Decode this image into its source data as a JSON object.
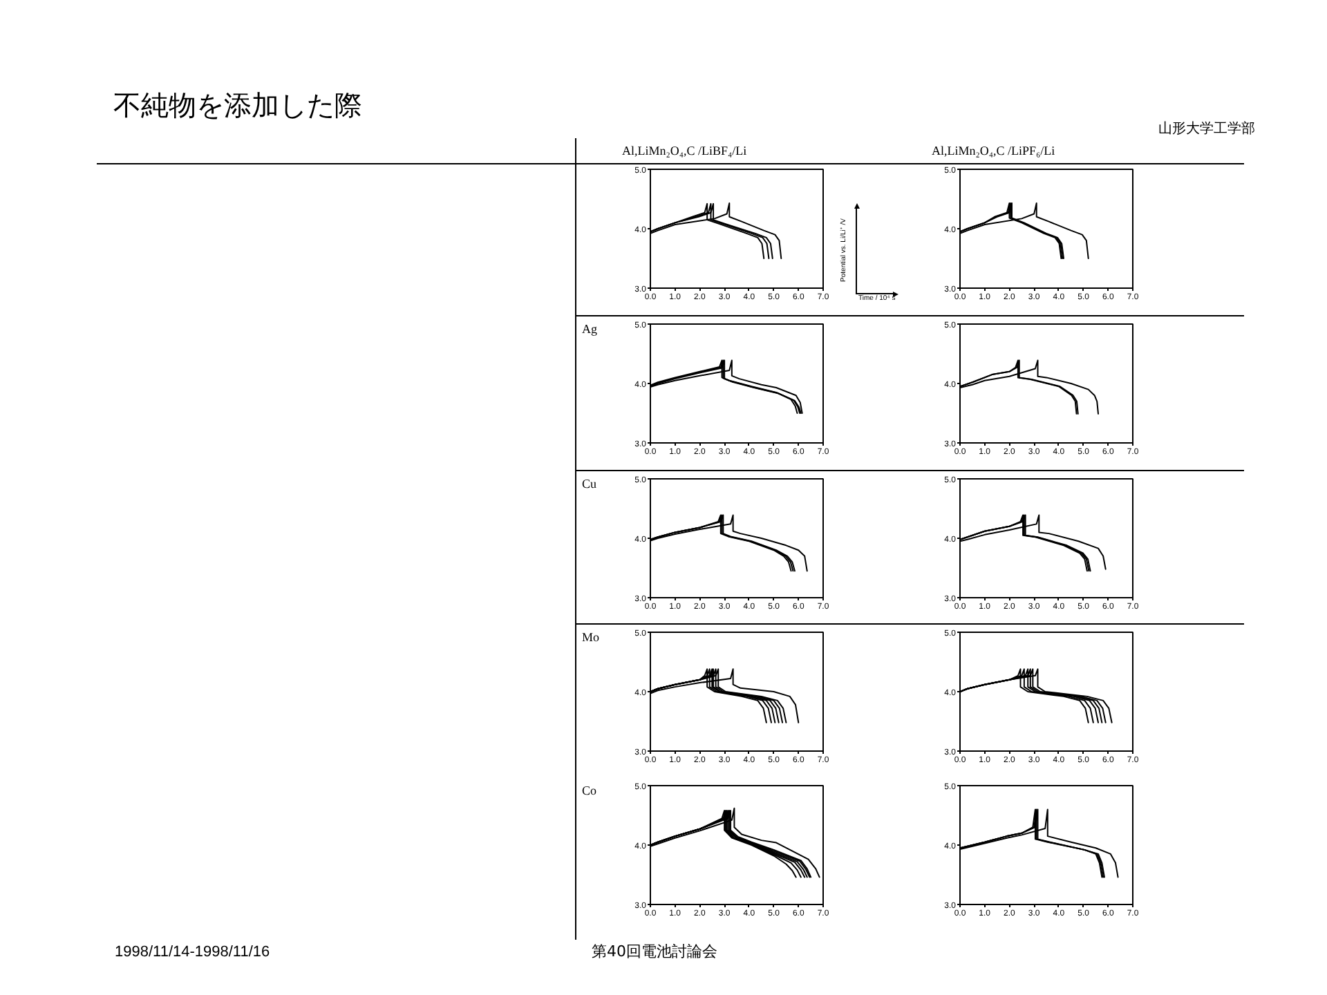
{
  "chart_data": [
    {
      "type": "line",
      "subtitle": "Al,LiMn₂O₄,C /LiBF₄/Li",
      "xlabel": "Time / 10⁴ s",
      "ylabel": "Potential vs. Li/Li⁺ /V",
      "annotations": [
        "不純物を添加した際",
        "1998/11/14-1998/11/16",
        "第40回電池討論会",
        "山形大学工学部"
      ],
      "xlim": [
        0,
        7
      ],
      "ylim": [
        3,
        5
      ],
      "xticks": [
        {
          "value": 0,
          "label": "0.0"
        },
        {
          "value": 1,
          "label": "1.0"
        },
        {
          "value": 2,
          "label": "2.0"
        },
        {
          "value": 3,
          "label": "3.0"
        },
        {
          "value": 4,
          "label": "4.0"
        },
        {
          "value": 5,
          "label": "5.0"
        },
        {
          "value": 6,
          "label": "6.0"
        },
        {
          "value": 7,
          "label": "7.0"
        }
      ],
      "yticks": [
        {
          "value": 3,
          "label": "3.0"
        },
        {
          "value": 4,
          "label": "4.0"
        },
        {
          "value": 5,
          "label": "5.0"
        }
      ],
      "series": [
        {
          "color": "#000000",
          "x": [
            0,
            0,
            0.3,
            1.0,
            1.7,
            2.2,
            2.3,
            2.3,
            2.8,
            3.9,
            4.35,
            4.52,
            4.6
          ],
          "values": [
            3.45,
            3.95,
            4.0,
            4.1,
            4.2,
            4.27,
            4.42,
            4.15,
            4.08,
            3.92,
            3.85,
            3.75,
            3.5
          ]
        },
        {
          "color": "#000000",
          "x": [
            0,
            0,
            0.3,
            1.0,
            1.85,
            2.35,
            2.45,
            2.45,
            2.95,
            4.1,
            4.55,
            4.72,
            4.8
          ],
          "values": [
            3.45,
            3.95,
            4.0,
            4.1,
            4.2,
            4.27,
            4.42,
            4.15,
            4.08,
            3.92,
            3.85,
            3.75,
            3.5
          ]
        },
        {
          "color": "#000000",
          "x": [
            0,
            0,
            0.3,
            1.0,
            1.95,
            2.45,
            2.55,
            2.55,
            3.05,
            4.25,
            4.7,
            4.87,
            4.95
          ],
          "values": [
            3.45,
            3.95,
            4.0,
            4.1,
            4.2,
            4.27,
            4.42,
            4.15,
            4.08,
            3.92,
            3.85,
            3.75,
            3.5
          ]
        },
        {
          "color": "#000000",
          "x": [
            0,
            0,
            0.3,
            1.0,
            2.6,
            3.1,
            3.2,
            3.2,
            3.7,
            4.6,
            5.05,
            5.22,
            5.3
          ],
          "values": [
            3.45,
            3.92,
            3.97,
            4.07,
            4.17,
            4.25,
            4.43,
            4.2,
            4.12,
            3.97,
            3.9,
            3.8,
            3.5
          ]
        }
      ]
    },
    {
      "type": "line",
      "subtitle": "Al,LiMn₂O₄,C /LiPF₆/Li",
      "xlim": [
        0,
        7
      ],
      "ylim": [
        3,
        5
      ],
      "xticks": [
        {
          "value": 0,
          "label": "0.0"
        },
        {
          "value": 1,
          "label": "1.0"
        },
        {
          "value": 2,
          "label": "2.0"
        },
        {
          "value": 3,
          "label": "3.0"
        },
        {
          "value": 4,
          "label": "4.0"
        },
        {
          "value": 5,
          "label": "5.0"
        },
        {
          "value": 6,
          "label": "6.0"
        },
        {
          "value": 7,
          "label": "7.0"
        }
      ],
      "yticks": [
        {
          "value": 3,
          "label": "3.0"
        },
        {
          "value": 4,
          "label": "4.0"
        },
        {
          "value": 5,
          "label": "5.0"
        }
      ],
      "series": [
        {
          "color": "#000000",
          "x": [
            0,
            0,
            0.3,
            1.0,
            1.4,
            1.9,
            2.0,
            2.0,
            2.5,
            3.4,
            3.85,
            4.02,
            4.1
          ],
          "values": [
            3.85,
            3.95,
            4.0,
            4.1,
            4.2,
            4.27,
            4.43,
            4.18,
            4.1,
            3.92,
            3.85,
            3.75,
            3.5
          ]
        },
        {
          "color": "#000000",
          "x": [
            0,
            0,
            0.3,
            1.0,
            1.45,
            1.95,
            2.05,
            2.05,
            2.55,
            3.45,
            3.9,
            4.07,
            4.15
          ],
          "values": [
            3.85,
            3.95,
            4.0,
            4.1,
            4.2,
            4.27,
            4.43,
            4.18,
            4.1,
            3.92,
            3.85,
            3.75,
            3.5
          ]
        },
        {
          "color": "#000000",
          "x": [
            0,
            0,
            0.3,
            1.0,
            1.5,
            2.0,
            2.1,
            2.1,
            2.6,
            3.5,
            3.95,
            4.12,
            4.2
          ],
          "values": [
            3.85,
            3.95,
            4.0,
            4.1,
            4.2,
            4.27,
            4.43,
            4.18,
            4.1,
            3.92,
            3.85,
            3.75,
            3.5
          ]
        },
        {
          "color": "#000000",
          "x": [
            0,
            0,
            0.3,
            1.0,
            2.5,
            3.0,
            3.1,
            3.1,
            3.6,
            4.5,
            4.95,
            5.12,
            5.2
          ],
          "values": [
            3.85,
            3.92,
            3.97,
            4.07,
            4.17,
            4.25,
            4.43,
            4.2,
            4.12,
            3.97,
            3.9,
            3.8,
            3.5
          ]
        }
      ]
    },
    {
      "type": "line",
      "title": "Ag",
      "xlim": [
        0,
        7
      ],
      "ylim": [
        3,
        5
      ],
      "xticks": [
        {
          "value": 0,
          "label": "0.0"
        },
        {
          "value": 1,
          "label": "1.0"
        },
        {
          "value": 2,
          "label": "2.0"
        },
        {
          "value": 3,
          "label": "3.0"
        },
        {
          "value": 4,
          "label": "4.0"
        },
        {
          "value": 5,
          "label": "5.0"
        },
        {
          "value": 6,
          "label": "6.0"
        },
        {
          "value": 7,
          "label": "7.0"
        }
      ],
      "yticks": [
        {
          "value": 3,
          "label": "3.0"
        },
        {
          "value": 4,
          "label": "4.0"
        },
        {
          "value": 5,
          "label": "5.0"
        }
      ],
      "series": [
        {
          "color": "#000000",
          "x": [
            0,
            0,
            0.3,
            1.0,
            2.0,
            2.8,
            2.9,
            2.9,
            3.2,
            4.1,
            5.1,
            5.7,
            5.87,
            5.95
          ],
          "values": [
            3.65,
            3.97,
            4.02,
            4.1,
            4.2,
            4.28,
            4.39,
            4.1,
            4.05,
            3.95,
            3.85,
            3.73,
            3.62,
            3.5
          ]
        },
        {
          "color": "#000000",
          "x": [
            0,
            0,
            0.3,
            1.0,
            2.0,
            2.85,
            2.95,
            2.95,
            3.25,
            4.15,
            5.15,
            5.8,
            5.97,
            6.05
          ],
          "values": [
            3.65,
            3.96,
            4.01,
            4.09,
            4.19,
            4.27,
            4.39,
            4.09,
            4.04,
            3.94,
            3.84,
            3.72,
            3.61,
            3.5
          ]
        },
        {
          "color": "#000000",
          "x": [
            0,
            0,
            0.3,
            1.0,
            2.0,
            2.9,
            3.0,
            3.0,
            3.3,
            4.2,
            5.2,
            5.85,
            6.02,
            6.1
          ],
          "values": [
            3.65,
            3.95,
            4.0,
            4.08,
            4.18,
            4.26,
            4.39,
            4.08,
            4.03,
            3.93,
            3.83,
            3.71,
            3.6,
            3.5
          ]
        },
        {
          "color": "#000000",
          "x": [
            0,
            0,
            0.3,
            1.0,
            2.0,
            3.2,
            3.3,
            3.3,
            3.6,
            4.5,
            5.1,
            5.9,
            6.07,
            6.15
          ],
          "values": [
            3.65,
            3.94,
            3.98,
            4.05,
            4.13,
            4.22,
            4.39,
            4.13,
            4.08,
            3.98,
            3.93,
            3.8,
            3.68,
            3.5
          ]
        }
      ]
    },
    {
      "type": "line",
      "xlim": [
        0,
        7
      ],
      "ylim": [
        3,
        5
      ],
      "xticks": [
        {
          "value": 0,
          "label": "0.0"
        },
        {
          "value": 1,
          "label": "1.0"
        },
        {
          "value": 2,
          "label": "2.0"
        },
        {
          "value": 3,
          "label": "3.0"
        },
        {
          "value": 4,
          "label": "4.0"
        },
        {
          "value": 5,
          "label": "5.0"
        },
        {
          "value": 6,
          "label": "6.0"
        },
        {
          "value": 7,
          "label": "7.0"
        }
      ],
      "yticks": [
        {
          "value": 3,
          "label": "3.0"
        },
        {
          "value": 4,
          "label": "4.0"
        },
        {
          "value": 5,
          "label": "5.0"
        }
      ],
      "series": [
        {
          "color": "#000000",
          "x": [
            0,
            0,
            0.5,
            1.3,
            2.0,
            2.25,
            2.35,
            2.35,
            2.85,
            4.0,
            4.52,
            4.67,
            4.72
          ],
          "values": [
            3.85,
            3.95,
            4.02,
            4.15,
            4.2,
            4.27,
            4.39,
            4.1,
            4.07,
            3.95,
            3.8,
            3.7,
            3.49
          ]
        },
        {
          "color": "#000000",
          "x": [
            0,
            0,
            0.5,
            1.3,
            2.0,
            2.3,
            2.4,
            2.4,
            2.9,
            4.05,
            4.58,
            4.73,
            4.78
          ],
          "values": [
            3.85,
            3.95,
            4.02,
            4.15,
            4.2,
            4.27,
            4.39,
            4.1,
            4.07,
            3.95,
            3.8,
            3.7,
            3.49
          ]
        },
        {
          "color": "#000000",
          "x": [
            0,
            0,
            0.5,
            1.0,
            2.0,
            3.05,
            3.15,
            3.15,
            3.5,
            4.5,
            5.2,
            5.45,
            5.55,
            5.6
          ],
          "values": [
            3.85,
            3.93,
            3.98,
            4.05,
            4.12,
            4.25,
            4.39,
            4.12,
            4.1,
            4.0,
            3.9,
            3.8,
            3.7,
            3.49
          ]
        }
      ]
    },
    {
      "type": "line",
      "title": "Cu",
      "xlim": [
        0,
        7
      ],
      "ylim": [
        3,
        5
      ],
      "xticks": [
        {
          "value": 0,
          "label": "0.0"
        },
        {
          "value": 1,
          "label": "1.0"
        },
        {
          "value": 2,
          "label": "2.0"
        },
        {
          "value": 3,
          "label": "3.0"
        },
        {
          "value": 4,
          "label": "4.0"
        },
        {
          "value": 5,
          "label": "5.0"
        },
        {
          "value": 6,
          "label": "6.0"
        },
        {
          "value": 7,
          "label": "7.0"
        }
      ],
      "yticks": [
        {
          "value": 3,
          "label": "3.0"
        },
        {
          "value": 4,
          "label": "4.0"
        },
        {
          "value": 5,
          "label": "5.0"
        }
      ],
      "series": [
        {
          "color": "#000000",
          "x": [
            0,
            0,
            0.3,
            1.0,
            2.0,
            2.75,
            2.85,
            2.85,
            3.15,
            4.0,
            5.0,
            5.4,
            5.6,
            5.7
          ],
          "values": [
            3.45,
            3.98,
            4.02,
            4.1,
            4.18,
            4.28,
            4.39,
            4.08,
            4.03,
            3.95,
            3.8,
            3.7,
            3.6,
            3.45
          ]
        },
        {
          "color": "#000000",
          "x": [
            0,
            0,
            0.3,
            1.0,
            2.0,
            2.8,
            2.9,
            2.9,
            3.2,
            4.05,
            5.05,
            5.48,
            5.68,
            5.78
          ],
          "values": [
            3.45,
            3.98,
            4.02,
            4.1,
            4.18,
            4.28,
            4.39,
            4.08,
            4.03,
            3.95,
            3.8,
            3.7,
            3.6,
            3.45
          ]
        },
        {
          "color": "#000000",
          "x": [
            0,
            0,
            0.3,
            1.0,
            2.0,
            2.85,
            2.95,
            2.95,
            3.25,
            4.1,
            5.1,
            5.55,
            5.75,
            5.85
          ],
          "values": [
            3.45,
            3.98,
            4.02,
            4.1,
            4.18,
            4.28,
            4.39,
            4.08,
            4.03,
            3.95,
            3.8,
            3.7,
            3.6,
            3.45
          ]
        },
        {
          "color": "#000000",
          "x": [
            0,
            0,
            0.3,
            1.0,
            2.0,
            3.25,
            3.35,
            3.35,
            3.65,
            4.5,
            5.5,
            6.0,
            6.25,
            6.35
          ],
          "values": [
            3.45,
            3.96,
            4.0,
            4.07,
            4.15,
            4.24,
            4.39,
            4.12,
            4.08,
            4.0,
            3.88,
            3.8,
            3.7,
            3.45
          ]
        }
      ]
    },
    {
      "type": "line",
      "xlim": [
        0,
        7
      ],
      "ylim": [
        3,
        5
      ],
      "xticks": [
        {
          "value": 0,
          "label": "0.0"
        },
        {
          "value": 1,
          "label": "1.0"
        },
        {
          "value": 2,
          "label": "2.0"
        },
        {
          "value": 3,
          "label": "3.0"
        },
        {
          "value": 4,
          "label": "4.0"
        },
        {
          "value": 5,
          "label": "5.0"
        },
        {
          "value": 6,
          "label": "6.0"
        },
        {
          "value": 7,
          "label": "7.0"
        }
      ],
      "yticks": [
        {
          "value": 3,
          "label": "3.0"
        },
        {
          "value": 4,
          "label": "4.0"
        },
        {
          "value": 5,
          "label": "5.0"
        }
      ],
      "series": [
        {
          "color": "#000000",
          "x": [
            0,
            0,
            0.3,
            1.0,
            2.0,
            2.45,
            2.55,
            2.55,
            3.05,
            4.2,
            4.85,
            5.05,
            5.15
          ],
          "values": [
            3.8,
            3.98,
            4.02,
            4.12,
            4.2,
            4.28,
            4.39,
            4.05,
            4.02,
            3.88,
            3.75,
            3.65,
            3.45
          ]
        },
        {
          "color": "#000000",
          "x": [
            0,
            0,
            0.3,
            1.0,
            2.0,
            2.5,
            2.6,
            2.6,
            3.1,
            4.27,
            4.92,
            5.12,
            5.22
          ],
          "values": [
            3.8,
            3.98,
            4.02,
            4.12,
            4.2,
            4.28,
            4.39,
            4.05,
            4.02,
            3.88,
            3.75,
            3.65,
            3.45
          ]
        },
        {
          "color": "#000000",
          "x": [
            0,
            0,
            0.3,
            1.0,
            2.0,
            2.55,
            2.65,
            2.65,
            3.15,
            4.33,
            4.98,
            5.18,
            5.28
          ],
          "values": [
            3.8,
            3.98,
            4.02,
            4.12,
            4.2,
            4.28,
            4.39,
            4.05,
            4.02,
            3.88,
            3.75,
            3.65,
            3.45
          ]
        },
        {
          "color": "#000000",
          "x": [
            0,
            0,
            0.3,
            1.0,
            2.0,
            3.1,
            3.2,
            3.2,
            3.6,
            4.8,
            5.6,
            5.8,
            5.9
          ],
          "values": [
            3.8,
            3.95,
            3.98,
            4.06,
            4.14,
            4.24,
            4.39,
            4.1,
            4.08,
            3.95,
            3.83,
            3.7,
            3.48
          ]
        }
      ]
    },
    {
      "type": "line",
      "title": "Mo",
      "xlim": [
        0,
        7
      ],
      "ylim": [
        3,
        5
      ],
      "xticks": [
        {
          "value": 0,
          "label": "0.0"
        },
        {
          "value": 1,
          "label": "1.0"
        },
        {
          "value": 2,
          "label": "2.0"
        },
        {
          "value": 3,
          "label": "3.0"
        },
        {
          "value": 4,
          "label": "4.0"
        },
        {
          "value": 5,
          "label": "5.0"
        },
        {
          "value": 6,
          "label": "6.0"
        },
        {
          "value": 7,
          "label": "7.0"
        }
      ],
      "yticks": [
        {
          "value": 3,
          "label": "3.0"
        },
        {
          "value": 4,
          "label": "4.0"
        },
        {
          "value": 5,
          "label": "5.0"
        }
      ],
      "series": [
        {
          "color": "#000000",
          "x": [
            0,
            0,
            0.3,
            1.0,
            2.0,
            2.2,
            2.3,
            2.3,
            2.6,
            3.7,
            4.35,
            4.58,
            4.7
          ],
          "values": [
            3.36,
            4.0,
            4.05,
            4.12,
            4.2,
            4.27,
            4.38,
            4.08,
            4.0,
            3.92,
            3.85,
            3.72,
            3.48
          ]
        },
        {
          "color": "#000000",
          "x": [
            0,
            0,
            0.3,
            1.0,
            2.0,
            2.3,
            2.4,
            2.4,
            2.7,
            3.9,
            4.55,
            4.78,
            4.9
          ],
          "values": [
            3.36,
            4.0,
            4.05,
            4.12,
            4.2,
            4.27,
            4.38,
            4.08,
            4.0,
            3.92,
            3.85,
            3.72,
            3.48
          ]
        },
        {
          "color": "#000000",
          "x": [
            0,
            0,
            0.3,
            1.0,
            2.0,
            2.4,
            2.5,
            2.5,
            2.8,
            4.05,
            4.7,
            4.93,
            5.05
          ],
          "values": [
            3.36,
            4.0,
            4.05,
            4.12,
            4.2,
            4.27,
            4.38,
            4.08,
            4.0,
            3.92,
            3.85,
            3.72,
            3.48
          ]
        },
        {
          "color": "#000000",
          "x": [
            0,
            0,
            0.3,
            1.0,
            2.0,
            2.45,
            2.55,
            2.55,
            2.85,
            4.2,
            4.85,
            5.08,
            5.2
          ],
          "values": [
            3.36,
            4.0,
            4.05,
            4.12,
            4.2,
            4.27,
            4.38,
            4.08,
            4.0,
            3.92,
            3.85,
            3.72,
            3.48
          ]
        },
        {
          "color": "#000000",
          "x": [
            0,
            0,
            0.3,
            1.0,
            2.0,
            2.55,
            2.65,
            2.65,
            2.95,
            4.35,
            5.0,
            5.23,
            5.35
          ],
          "values": [
            3.36,
            4.0,
            4.05,
            4.12,
            4.2,
            4.27,
            4.38,
            4.08,
            4.0,
            3.92,
            3.85,
            3.72,
            3.48
          ]
        },
        {
          "color": "#000000",
          "x": [
            0,
            0,
            0.3,
            1.0,
            2.0,
            2.65,
            2.75,
            2.75,
            3.05,
            4.5,
            5.15,
            5.38,
            5.5
          ],
          "values": [
            3.36,
            4.0,
            4.05,
            4.12,
            4.2,
            4.27,
            4.38,
            4.08,
            4.0,
            3.92,
            3.85,
            3.72,
            3.48
          ]
        },
        {
          "color": "#000000",
          "x": [
            0,
            0,
            0.3,
            1.0,
            2.0,
            3.25,
            3.35,
            3.35,
            3.65,
            5.0,
            5.65,
            5.88,
            6.0
          ],
          "values": [
            3.36,
            3.97,
            4.02,
            4.08,
            4.15,
            4.22,
            4.38,
            4.12,
            4.06,
            4.0,
            3.92,
            3.78,
            3.48
          ]
        }
      ]
    },
    {
      "type": "line",
      "xlim": [
        0,
        7
      ],
      "ylim": [
        3,
        5
      ],
      "xticks": [
        {
          "value": 0,
          "label": "0.0"
        },
        {
          "value": 1,
          "label": "1.0"
        },
        {
          "value": 2,
          "label": "2.0"
        },
        {
          "value": 3,
          "label": "3.0"
        },
        {
          "value": 4,
          "label": "4.0"
        },
        {
          "value": 5,
          "label": "5.0"
        },
        {
          "value": 6,
          "label": "6.0"
        },
        {
          "value": 7,
          "label": "7.0"
        }
      ],
      "yticks": [
        {
          "value": 3,
          "label": "3.0"
        },
        {
          "value": 4,
          "label": "4.0"
        },
        {
          "value": 5,
          "label": "5.0"
        }
      ],
      "series": [
        {
          "color": "#000000",
          "x": [
            0,
            0,
            0.3,
            1.0,
            2.0,
            2.35,
            2.45,
            2.45,
            2.75,
            4.2,
            4.85,
            5.08,
            5.2
          ],
          "values": [
            3.85,
            4.0,
            4.05,
            4.12,
            4.2,
            4.27,
            4.38,
            4.08,
            4.0,
            3.92,
            3.85,
            3.72,
            3.48
          ]
        },
        {
          "color": "#000000",
          "x": [
            0,
            0,
            0.3,
            1.0,
            2.0,
            2.5,
            2.6,
            2.6,
            2.9,
            4.4,
            5.05,
            5.28,
            5.4
          ],
          "values": [
            3.85,
            4.0,
            4.05,
            4.12,
            4.2,
            4.27,
            4.38,
            4.08,
            4.0,
            3.92,
            3.85,
            3.72,
            3.48
          ]
        },
        {
          "color": "#000000",
          "x": [
            0,
            0,
            0.3,
            1.0,
            2.0,
            2.65,
            2.75,
            2.75,
            3.05,
            4.6,
            5.25,
            5.48,
            5.6
          ],
          "values": [
            3.85,
            4.0,
            4.05,
            4.12,
            4.2,
            4.27,
            4.38,
            4.08,
            4.0,
            3.92,
            3.85,
            3.72,
            3.48
          ]
        },
        {
          "color": "#000000",
          "x": [
            0,
            0,
            0.3,
            1.0,
            2.0,
            2.75,
            2.85,
            2.85,
            3.15,
            4.75,
            5.4,
            5.63,
            5.75
          ],
          "values": [
            3.85,
            4.0,
            4.05,
            4.12,
            4.2,
            4.27,
            4.38,
            4.08,
            4.0,
            3.92,
            3.85,
            3.72,
            3.48
          ]
        },
        {
          "color": "#000000",
          "x": [
            0,
            0,
            0.3,
            1.0,
            2.0,
            2.85,
            2.95,
            2.95,
            3.25,
            4.9,
            5.55,
            5.78,
            5.9
          ],
          "values": [
            3.85,
            4.0,
            4.05,
            4.12,
            4.2,
            4.27,
            4.38,
            4.08,
            4.0,
            3.92,
            3.85,
            3.72,
            3.48
          ]
        },
        {
          "color": "#000000",
          "x": [
            0,
            0,
            0.3,
            1.0,
            2.0,
            3.05,
            3.15,
            3.15,
            3.45,
            5.15,
            5.8,
            6.03,
            6.15
          ],
          "values": [
            3.85,
            4.0,
            4.05,
            4.12,
            4.2,
            4.27,
            4.38,
            4.08,
            4.0,
            3.92,
            3.85,
            3.72,
            3.48
          ]
        }
      ]
    },
    {
      "type": "line",
      "title": "Co",
      "xlim": [
        0,
        7
      ],
      "ylim": [
        3,
        5
      ],
      "xticks": [
        {
          "value": 0,
          "label": "0.0"
        },
        {
          "value": 1,
          "label": "1.0"
        },
        {
          "value": 2,
          "label": "2.0"
        },
        {
          "value": 3,
          "label": "3.0"
        },
        {
          "value": 4,
          "label": "4.0"
        },
        {
          "value": 5,
          "label": "5.0"
        },
        {
          "value": 6,
          "label": "6.0"
        },
        {
          "value": 7,
          "label": "7.0"
        }
      ],
      "yticks": [
        {
          "value": 3,
          "label": "3.0"
        },
        {
          "value": 4,
          "label": "4.0"
        },
        {
          "value": 5,
          "label": "5.0"
        }
      ],
      "series": [
        {
          "color": "#000000",
          "x": [
            0,
            0,
            0.3,
            1.0,
            2.0,
            2.9,
            3.0,
            3.0,
            3.3,
            4.1,
            5.0,
            5.5,
            5.75,
            5.9
          ],
          "values": [
            3.35,
            4.0,
            4.05,
            4.15,
            4.27,
            4.45,
            4.58,
            4.25,
            4.12,
            4.0,
            3.82,
            3.68,
            3.57,
            3.46
          ]
        },
        {
          "color": "#000000",
          "x": [
            0,
            0,
            0.3,
            1.0,
            2.0,
            2.95,
            3.05,
            3.05,
            3.35,
            4.1,
            5.0,
            5.7,
            5.95,
            6.1
          ],
          "values": [
            3.35,
            4.0,
            4.05,
            4.15,
            4.27,
            4.45,
            4.58,
            4.25,
            4.12,
            4.01,
            3.84,
            3.7,
            3.58,
            3.46
          ]
        },
        {
          "color": "#000000",
          "x": [
            0,
            0,
            0.3,
            1.0,
            2.0,
            3.0,
            3.1,
            3.1,
            3.4,
            4.1,
            5.0,
            5.85,
            6.1,
            6.25
          ],
          "values": [
            3.35,
            4.0,
            4.05,
            4.15,
            4.27,
            4.45,
            4.58,
            4.25,
            4.12,
            4.02,
            3.86,
            3.71,
            3.58,
            3.46
          ]
        },
        {
          "color": "#000000",
          "x": [
            0,
            0,
            0.3,
            1.0,
            2.0,
            3.05,
            3.15,
            3.15,
            3.45,
            4.1,
            5.0,
            5.95,
            6.2,
            6.35
          ],
          "values": [
            3.35,
            4.0,
            4.05,
            4.15,
            4.27,
            4.45,
            4.58,
            4.25,
            4.13,
            4.03,
            3.88,
            3.72,
            3.59,
            3.46
          ]
        },
        {
          "color": "#000000",
          "x": [
            0,
            0,
            0.3,
            1.0,
            2.0,
            3.1,
            3.2,
            3.2,
            3.5,
            4.1,
            5.0,
            6.05,
            6.3,
            6.45
          ],
          "values": [
            3.35,
            4.0,
            4.05,
            4.15,
            4.27,
            4.45,
            4.58,
            4.25,
            4.13,
            4.04,
            3.9,
            3.73,
            3.59,
            3.46
          ]
        },
        {
          "color": "#000000",
          "x": [
            0,
            0,
            0.3,
            1.0,
            2.0,
            3.15,
            3.25,
            3.25,
            3.55,
            4.1,
            5.0,
            6.1,
            6.35,
            6.5
          ],
          "values": [
            3.35,
            4.0,
            4.05,
            4.15,
            4.27,
            4.45,
            4.58,
            4.25,
            4.14,
            4.05,
            3.92,
            3.74,
            3.6,
            3.46
          ]
        },
        {
          "color": "#000000",
          "x": [
            0,
            0,
            0.3,
            1.0,
            2.0,
            3.3,
            3.4,
            3.4,
            3.7,
            4.5,
            5.1,
            6.4,
            6.7,
            6.85
          ],
          "values": [
            3.35,
            3.98,
            4.02,
            4.12,
            4.24,
            4.42,
            4.62,
            4.3,
            4.18,
            4.08,
            4.04,
            3.76,
            3.6,
            3.46
          ]
        }
      ]
    },
    {
      "type": "line",
      "xlim": [
        0,
        7
      ],
      "ylim": [
        3,
        5
      ],
      "xticks": [
        {
          "value": 0,
          "label": "0.0"
        },
        {
          "value": 1,
          "label": "1.0"
        },
        {
          "value": 2,
          "label": "2.0"
        },
        {
          "value": 3,
          "label": "3.0"
        },
        {
          "value": 4,
          "label": "4.0"
        },
        {
          "value": 5,
          "label": "5.0"
        },
        {
          "value": 6,
          "label": "6.0"
        },
        {
          "value": 7,
          "label": "7.0"
        }
      ],
      "yticks": [
        {
          "value": 3,
          "label": "3.0"
        },
        {
          "value": 4,
          "label": "4.0"
        },
        {
          "value": 5,
          "label": "5.0"
        }
      ],
      "series": [
        {
          "color": "#000000",
          "x": [
            0,
            0,
            0.3,
            1.0,
            1.9,
            2.5,
            2.95,
            3.05,
            3.05,
            3.55,
            5.04,
            5.5,
            5.65,
            5.75
          ],
          "values": [
            3.85,
            3.95,
            3.98,
            4.05,
            4.15,
            4.2,
            4.3,
            4.6,
            4.1,
            4.05,
            3.92,
            3.85,
            3.7,
            3.46
          ]
        },
        {
          "color": "#000000",
          "x": [
            0,
            0,
            0.3,
            1.0,
            1.9,
            2.5,
            3.0,
            3.1,
            3.1,
            3.6,
            5.04,
            5.55,
            5.7,
            5.8
          ],
          "values": [
            3.85,
            3.95,
            3.98,
            4.05,
            4.15,
            4.2,
            4.3,
            4.6,
            4.1,
            4.05,
            3.92,
            3.85,
            3.7,
            3.46
          ]
        },
        {
          "color": "#000000",
          "x": [
            0,
            0,
            0.3,
            1.0,
            1.9,
            2.5,
            3.05,
            3.15,
            3.15,
            3.65,
            5.04,
            5.6,
            5.75,
            5.85
          ],
          "values": [
            3.85,
            3.95,
            3.98,
            4.05,
            4.15,
            4.2,
            4.3,
            4.6,
            4.1,
            4.05,
            3.92,
            3.85,
            3.7,
            3.46
          ]
        },
        {
          "color": "#000000",
          "x": [
            0,
            0,
            0.3,
            1.0,
            1.9,
            2.5,
            3.45,
            3.55,
            3.55,
            4.5,
            5.5,
            6.1,
            6.3,
            6.4
          ],
          "values": [
            3.85,
            3.93,
            3.96,
            4.03,
            4.12,
            4.17,
            4.28,
            4.6,
            4.15,
            4.05,
            3.95,
            3.85,
            3.7,
            3.46
          ]
        }
      ]
    }
  ]
}
